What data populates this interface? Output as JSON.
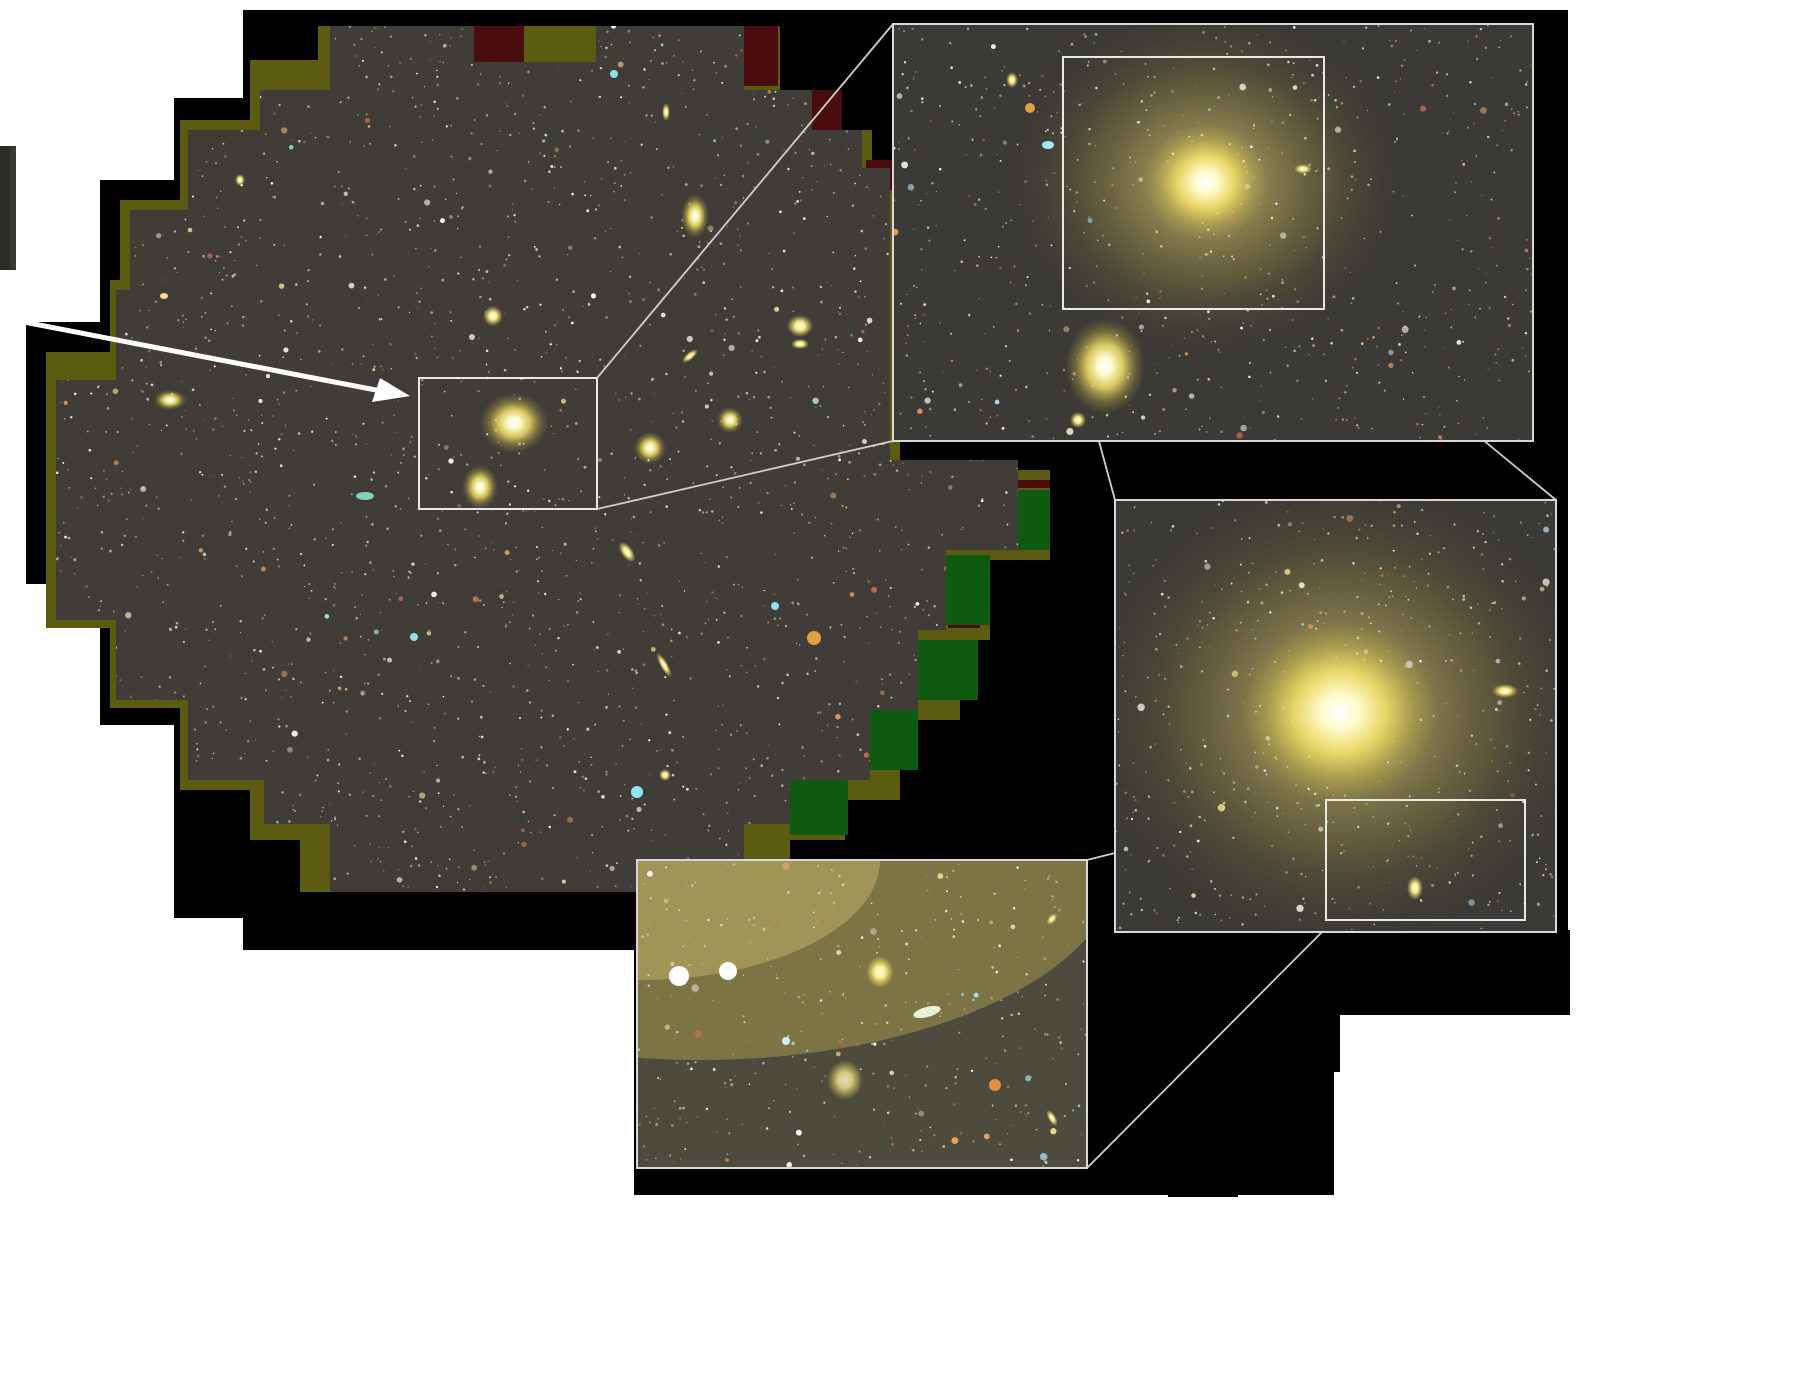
{
  "figure": {
    "panels": [
      {
        "id": "full-mosaic"
      },
      {
        "id": "zoom-1"
      },
      {
        "id": "zoom-2"
      },
      {
        "id": "zoom-3"
      }
    ],
    "colors": {
      "page_background": "#ffffff",
      "void": "#000000",
      "sky": "#3e3b37",
      "border_olive": "#6b6a12",
      "border_green": "#0e5a10",
      "border_red": "#5a1010",
      "galaxy_core": "#fffbe0",
      "galaxy_halo": "#f2e05a",
      "frame_line": "#e6e6e6",
      "arrow": "#ffffff"
    }
  }
}
